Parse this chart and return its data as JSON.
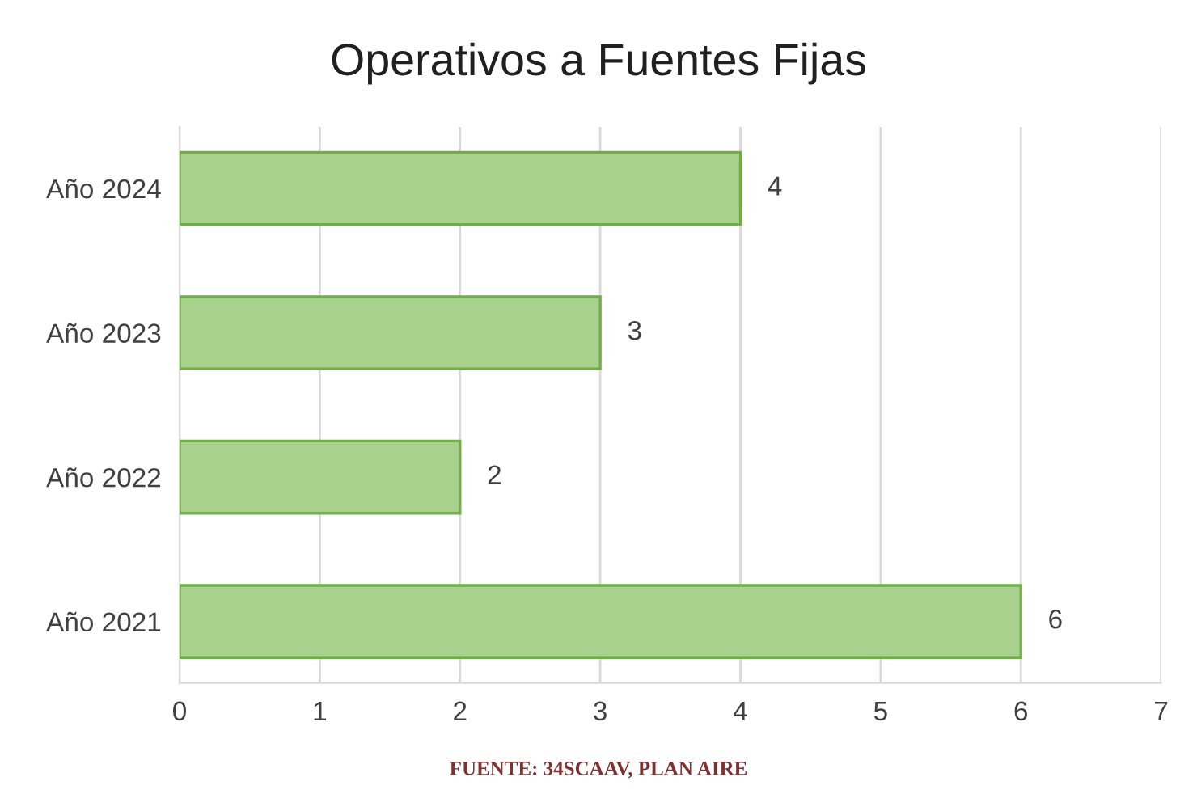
{
  "chart_data": {
    "type": "bar",
    "orientation": "horizontal",
    "title": "Operativos a Fuentes Fijas",
    "categories": [
      "Año 2024",
      "Año 2023",
      "Año 2022",
      "Año 2021"
    ],
    "values": [
      4,
      3,
      2,
      6
    ],
    "color": "#a9d18e",
    "xlim": [
      0,
      7
    ],
    "xticks": [
      0,
      1,
      2,
      3,
      4,
      5,
      6,
      7
    ],
    "grid": "x",
    "data_labels": true,
    "legend": false,
    "annotations": [
      "FUENTE: 34SCAAV, PLAN AIRE"
    ]
  }
}
